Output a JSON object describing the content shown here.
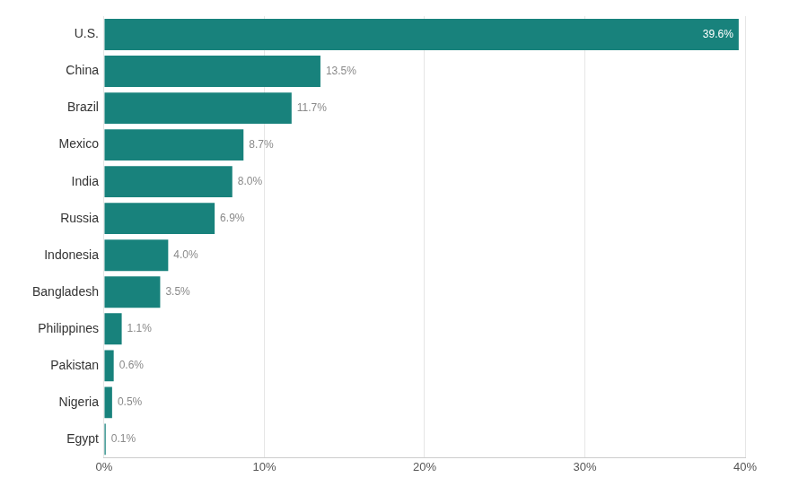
{
  "chart_data": {
    "type": "bar",
    "orientation": "horizontal",
    "categories": [
      "U.S.",
      "China",
      "Brazil",
      "Mexico",
      "India",
      "Russia",
      "Indonesia",
      "Bangladesh",
      "Philippines",
      "Pakistan",
      "Nigeria",
      "Egypt"
    ],
    "values": [
      39.6,
      13.5,
      11.7,
      8.7,
      8.0,
      6.9,
      4.0,
      3.5,
      1.1,
      0.6,
      0.5,
      0.1
    ],
    "value_labels": [
      "39.6%",
      "13.5%",
      "11.7%",
      "8.7%",
      "8.0%",
      "6.9%",
      "4.0%",
      "3.5%",
      "1.1%",
      "0.6%",
      "0.5%",
      "0.1%"
    ],
    "color": "#18827c",
    "xlim": [
      0,
      40
    ],
    "xticks": [
      {
        "value": 0,
        "label": "0%"
      },
      {
        "value": 10,
        "label": "10%"
      },
      {
        "value": 20,
        "label": "20%"
      },
      {
        "value": 30,
        "label": "30%"
      },
      {
        "value": 40,
        "label": "40%"
      }
    ],
    "grid": true,
    "data_labels": true
  }
}
